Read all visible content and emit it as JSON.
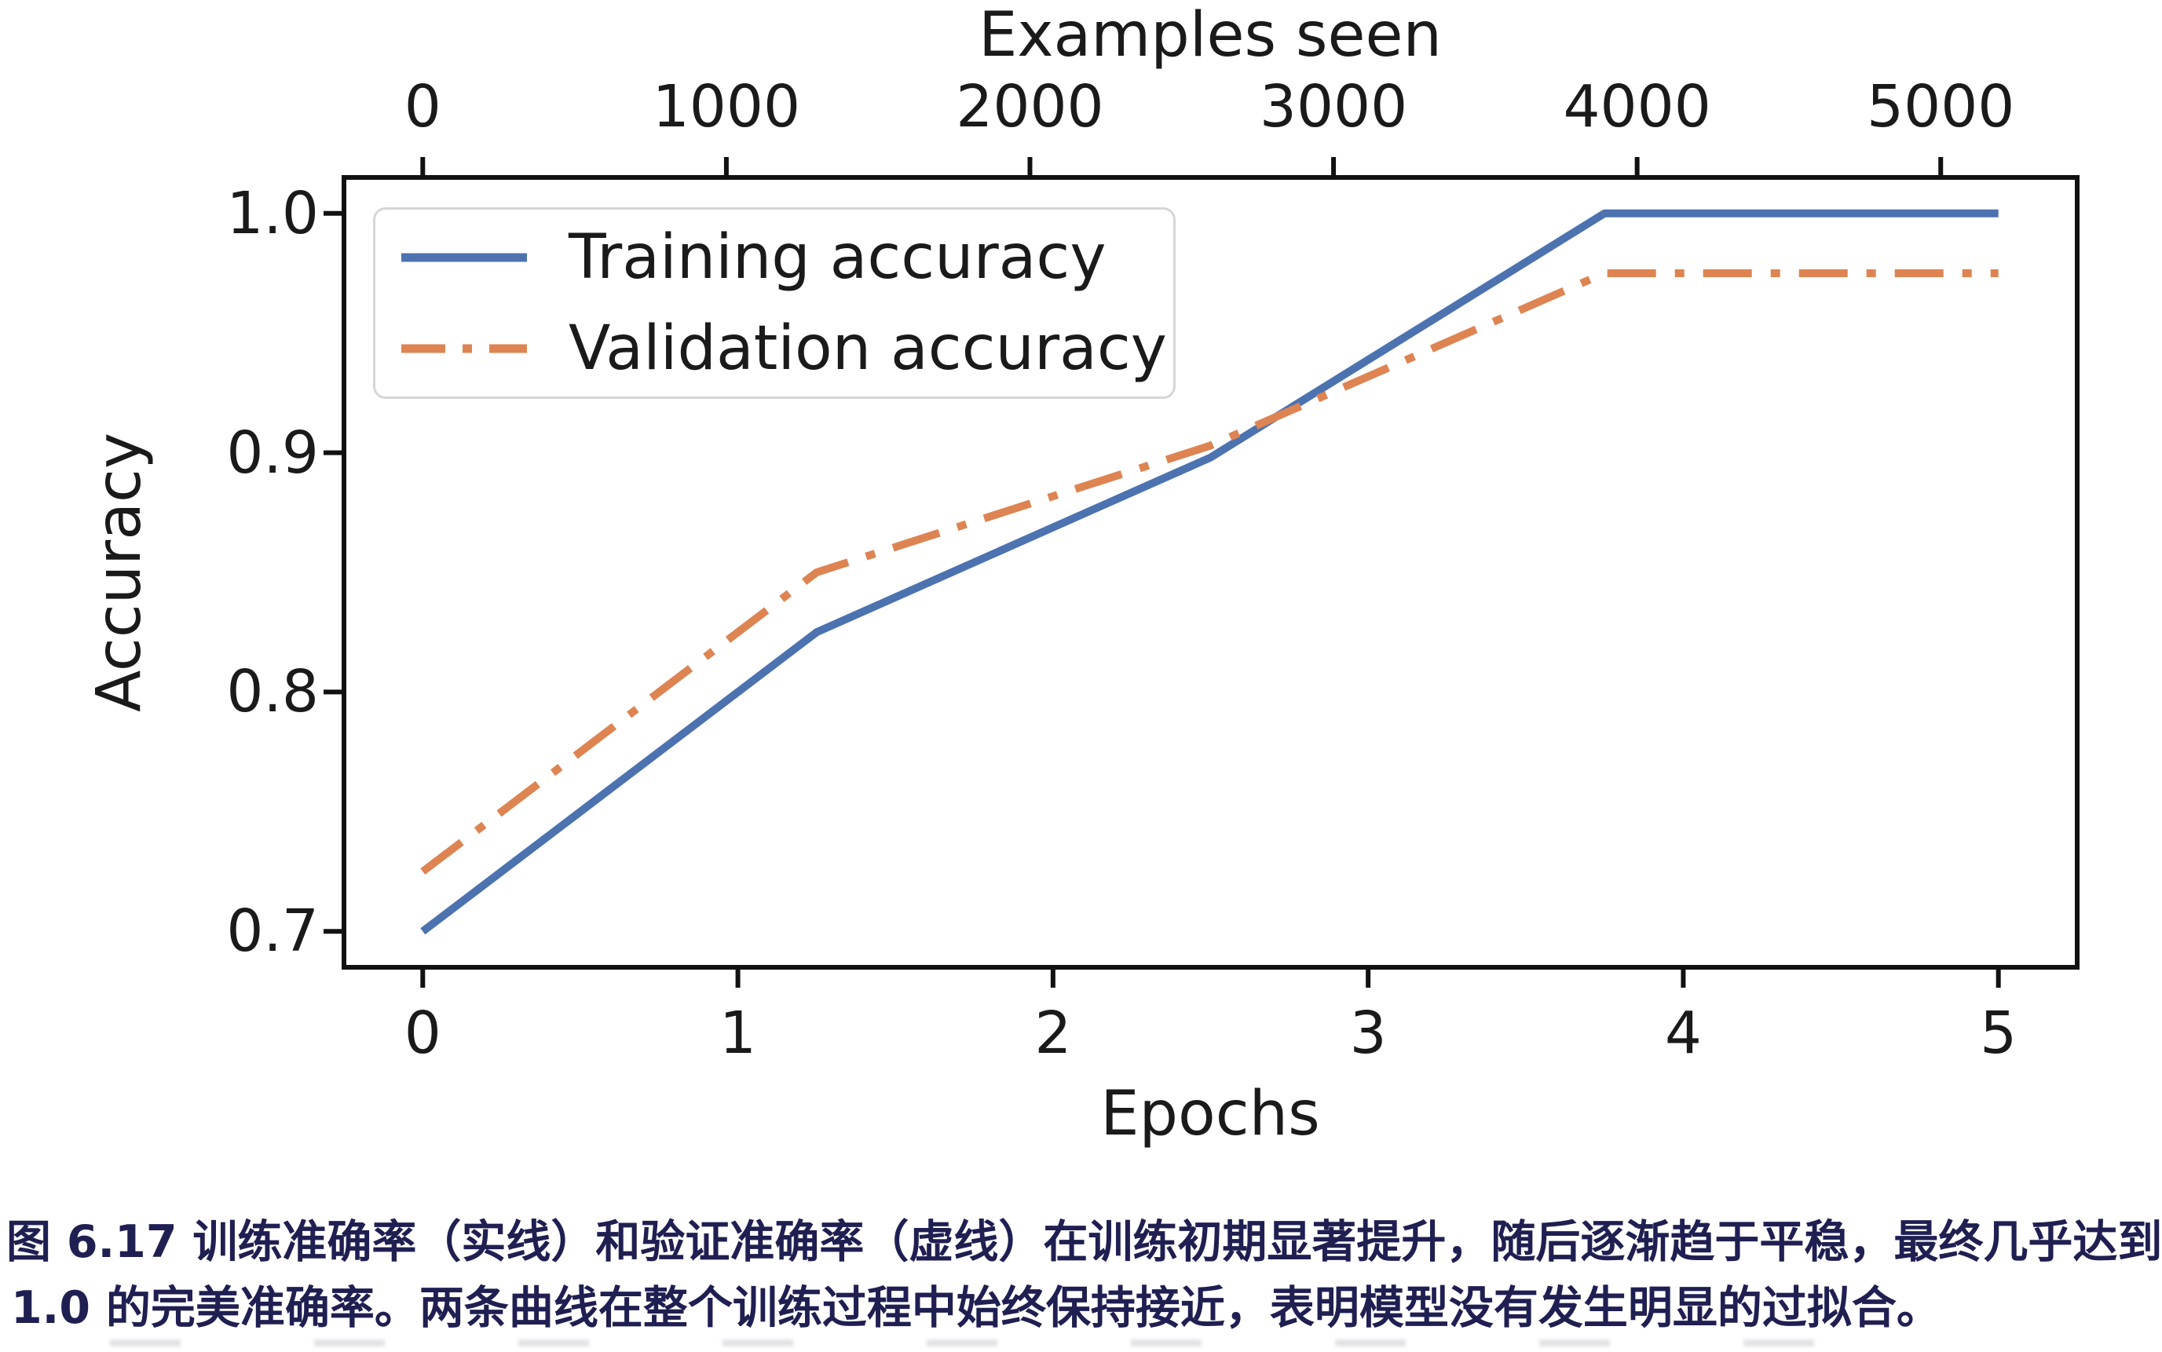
{
  "chart_data": {
    "type": "line",
    "title": "",
    "top_xlabel": "Examples seen",
    "xlabel": "Epochs",
    "ylabel": "Accuracy",
    "x": [
      0,
      1.25,
      2.5,
      3.75,
      5
    ],
    "series": [
      {
        "name": "Training accuracy",
        "style": "solid",
        "color": "#4C72B0",
        "values": [
          0.7,
          0.825,
          0.898,
          1.0,
          1.0
        ]
      },
      {
        "name": "Validation accuracy",
        "style": "dashdot",
        "color": "#DD8452",
        "values": [
          0.725,
          0.85,
          0.903,
          0.975,
          0.975
        ]
      }
    ],
    "x_ticks": [
      "0",
      "1",
      "2",
      "3",
      "4",
      "5"
    ],
    "top_x_ticks": [
      "0",
      "1000",
      "2000",
      "3000",
      "4000",
      "5000"
    ],
    "top_x_tick_values": [
      0,
      1000,
      2000,
      3000,
      4000,
      5000
    ],
    "y_ticks": [
      "0.7",
      "0.8",
      "0.9",
      "1.0"
    ],
    "y_tick_values": [
      0.7,
      0.8,
      0.9,
      1.0
    ],
    "xlim": [
      -0.25,
      5.25
    ],
    "ylim": [
      0.685,
      1.015
    ],
    "examples_per_epoch": 1038,
    "grid": false,
    "legend_position": "upper left",
    "axis_color": "#111111"
  },
  "legend": {
    "items": [
      {
        "label": "Training accuracy"
      },
      {
        "label": "Validation accuracy"
      }
    ]
  },
  "caption": {
    "color": "#1f1f52",
    "lines": [
      "图 6.17 训练准确率（实线）和验证准确率（虚线）在训练初期显著提升，随后逐渐趋于平稳，最终几乎达到",
      "1.0 的完美准确率。两条曲线在整个训练过程中始终保持接近，表明模型没有发生明显的过拟合。"
    ],
    "full_text": "图 6.17 训练准确率（实线）和验证准确率（虚线）在训练初期显著提升，随后逐渐趋于平稳，最终几乎达到 1.0 的完美准确率。两条曲线在整个训练过程中始终保持接近，表明模型没有发生明显的过拟合。"
  }
}
